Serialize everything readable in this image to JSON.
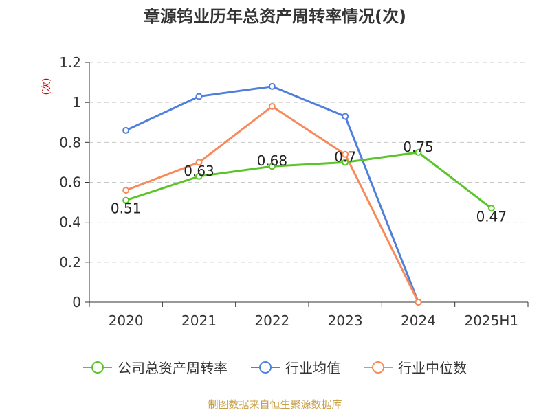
{
  "chart_data": {
    "type": "line",
    "title": "章源钨业历年总资产周转率情况(次)",
    "ylabel": "(次)",
    "xlabel": "",
    "categories": [
      "2020",
      "2021",
      "2022",
      "2023",
      "2024",
      "2025H1"
    ],
    "ylim": [
      0,
      1.2
    ],
    "yticks": [
      "0",
      "0.2",
      "0.4",
      "0.6",
      "0.8",
      "1",
      "1.2"
    ],
    "grid": true,
    "legend_position": "bottom",
    "series": [
      {
        "name": "公司总资产周转率",
        "color": "#5ac528",
        "values": [
          0.51,
          0.63,
          0.68,
          0.7,
          0.75,
          0.47
        ],
        "labels": [
          "0.51",
          "0.63",
          "0.68",
          "0.7",
          "0.75",
          "0.47"
        ]
      },
      {
        "name": "行业均值",
        "color": "#4e7fdc",
        "values": [
          0.86,
          1.03,
          1.08,
          0.93,
          0,
          null
        ]
      },
      {
        "name": "行业中位数",
        "color": "#f78a5a",
        "values": [
          0.56,
          0.7,
          0.98,
          0.74,
          0,
          null
        ]
      }
    ]
  },
  "footer": "制图数据来自恒生聚源数据库"
}
